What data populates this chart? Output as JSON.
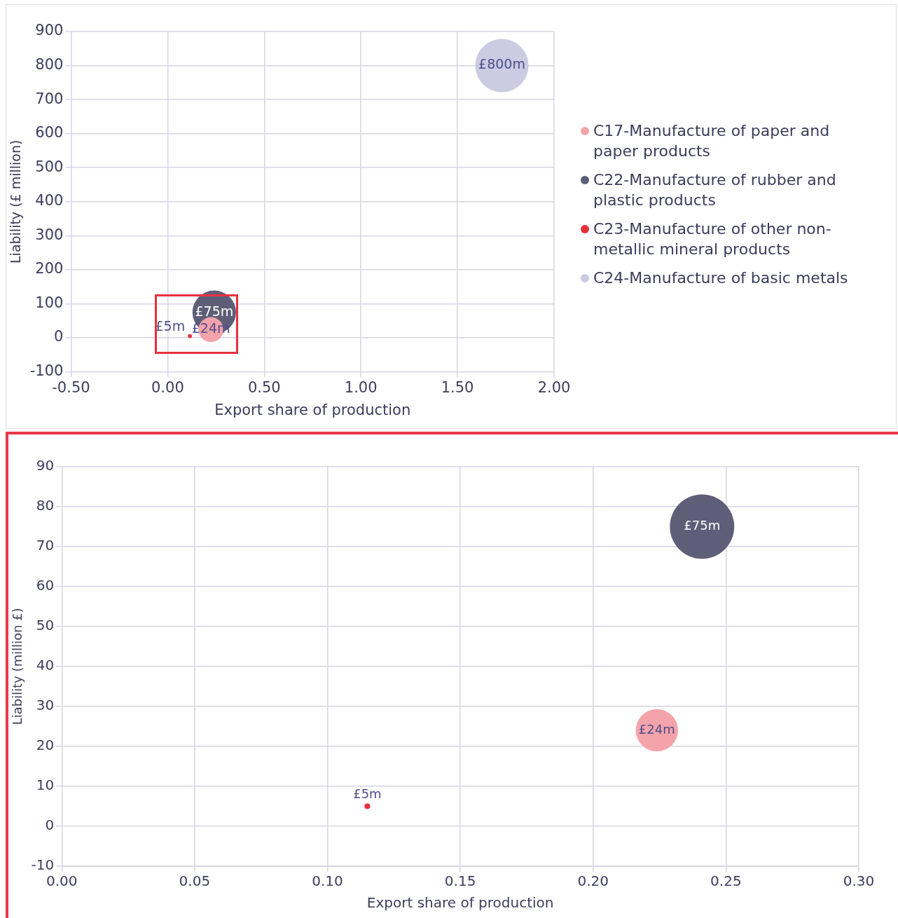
{
  "chart_data": [
    {
      "type": "bubble",
      "xlabel": "Export share of production",
      "ylabel": "Liability (£ million)",
      "xlim": [
        -0.5,
        2.0
      ],
      "xticks": [
        {
          "value": -0.5,
          "label": "-0.50"
        },
        {
          "value": 0,
          "label": "0.00"
        },
        {
          "value": 0.5,
          "label": "0.50"
        },
        {
          "value": 1,
          "label": "1.00"
        },
        {
          "value": 1.5,
          "label": "1.50"
        },
        {
          "value": 2,
          "label": "2.00"
        }
      ],
      "ylim": [
        -100,
        900
      ],
      "yticks": [
        -100,
        0,
        100,
        200,
        300,
        400,
        500,
        600,
        700,
        800,
        900
      ],
      "grid": true,
      "legend": "right",
      "series": [
        {
          "name": "C17-Manufacture of paper and paper products",
          "color": "#f4a3aa",
          "x": [
            0.224
          ],
          "values": [
            24
          ],
          "sizes": [
            0.22
          ],
          "value_labels": [
            "£24m"
          ]
        },
        {
          "name": "C22-Manufacture of rubber and plastic products",
          "color": "#5e5e78",
          "x": [
            0.241
          ],
          "values": [
            75
          ],
          "sizes": [
            0.67
          ],
          "value_labels": [
            "£75m"
          ]
        },
        {
          "name": "C23-Manufacture of other non-metallic mineral products",
          "color": "#e8303e",
          "x": [
            0.115
          ],
          "values": [
            5
          ],
          "sizes": [
            0.006
          ],
          "value_labels": [
            "£5m"
          ]
        },
        {
          "name": "C24-Manufacture of basic metals",
          "color": "#cbcbe2",
          "x": [
            1.73
          ],
          "values": [
            800
          ],
          "sizes": [
            1
          ],
          "value_labels": [
            "£800m"
          ]
        }
      ]
    },
    {
      "type": "bubble",
      "xlabel": "Export share of production",
      "ylabel": "Liability (million £)",
      "xlim": [
        0,
        0.3
      ],
      "xticks": [
        {
          "value": 0,
          "label": "0.00"
        },
        {
          "value": 0.05,
          "label": "0.05"
        },
        {
          "value": 0.1,
          "label": "0.10"
        },
        {
          "value": 0.15,
          "label": "0.15"
        },
        {
          "value": 0.2,
          "label": "0.20"
        },
        {
          "value": 0.25,
          "label": "0.25"
        },
        {
          "value": 0.3,
          "label": "0.30"
        }
      ],
      "ylim": [
        -10,
        90
      ],
      "yticks": [
        -10,
        0,
        10,
        20,
        30,
        40,
        50,
        60,
        70,
        80,
        90
      ],
      "grid": true,
      "series": [
        {
          "color": "#f4a3aa",
          "x": [
            0.224
          ],
          "values": [
            24
          ],
          "sizes": [
            0.43
          ],
          "value_labels": [
            "£24m"
          ]
        },
        {
          "color": "#5e5e78",
          "x": [
            0.241
          ],
          "values": [
            75
          ],
          "sizes": [
            1
          ],
          "value_labels": [
            "£75m"
          ]
        },
        {
          "color": "#e8303e",
          "x": [
            0.115
          ],
          "values": [
            5
          ],
          "sizes": [
            0.008
          ],
          "value_labels": [
            "£5m"
          ]
        }
      ]
    }
  ]
}
